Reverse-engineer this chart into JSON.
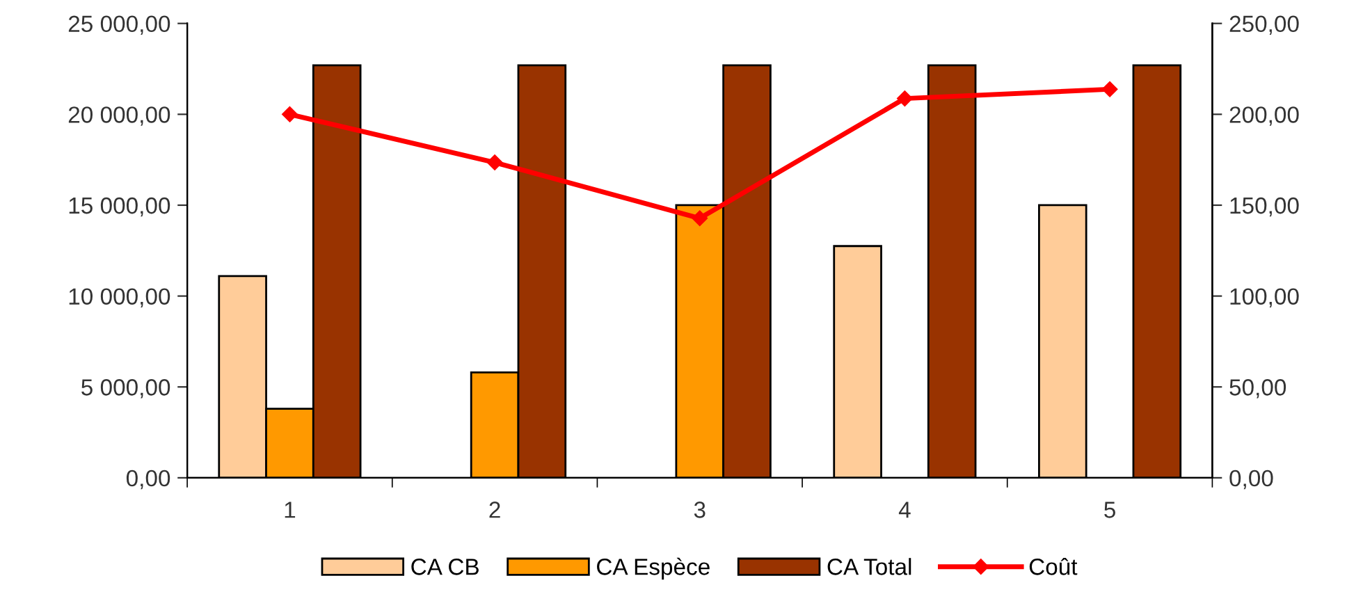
{
  "chart_data": {
    "type": "bar",
    "categories": [
      "1",
      "2",
      "3",
      "4",
      "5"
    ],
    "series": [
      {
        "name": "CA CB",
        "color": "#ffcc99",
        "values": [
          11100,
          null,
          null,
          12750,
          15000
        ]
      },
      {
        "name": "CA Espèce",
        "color": "#ff9900",
        "values": [
          3800,
          5800,
          15000,
          null,
          null
        ]
      },
      {
        "name": "CA Total",
        "color": "#993300",
        "values": [
          22700,
          22700,
          22700,
          22700,
          22700
        ]
      },
      {
        "name": "Coût",
        "type": "line",
        "axis": "y2",
        "color": "#ff0000",
        "marker": "diamond",
        "values": [
          200,
          173.5,
          142.8,
          208.7,
          213.8
        ]
      }
    ],
    "ylim": [
      0,
      25000
    ],
    "yticks": [
      {
        "value": 0,
        "label": "0,00"
      },
      {
        "value": 5000,
        "label": "5 000,00"
      },
      {
        "value": 10000,
        "label": "10 000,00"
      },
      {
        "value": 15000,
        "label": "15 000,00"
      },
      {
        "value": 20000,
        "label": "20 000,00"
      },
      {
        "value": 25000,
        "label": "25 000,00"
      }
    ],
    "y2lim": [
      0,
      250
    ],
    "y2ticks": [
      {
        "value": 0,
        "label": "0,00"
      },
      {
        "value": 50,
        "label": "50,00"
      },
      {
        "value": 100,
        "label": "100,00"
      },
      {
        "value": 150,
        "label": "150,00"
      },
      {
        "value": 200,
        "label": "200,00"
      },
      {
        "value": 250,
        "label": "250,00"
      }
    ],
    "grid": false,
    "legend": "bottom"
  }
}
